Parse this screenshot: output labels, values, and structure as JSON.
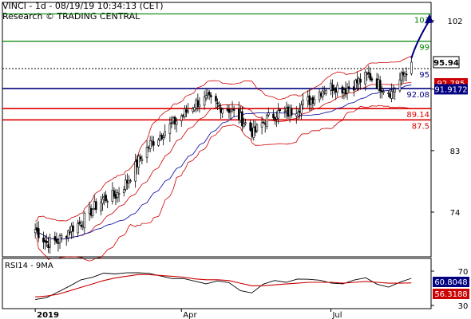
{
  "header": {
    "line1": "VINCI - 1d - 08/19/19 10:34:13 (CET)",
    "line2": "Research © TRADING CENTRAL"
  },
  "colors": {
    "resistance": "#008000",
    "pivot": "#000080",
    "support": "#dd0000",
    "price_marker": "#000000",
    "arrow": "#000080",
    "candles": "#000000",
    "ma_blue": "#1a1aa8",
    "bollinger": "#cc0000",
    "rsi": "#000000",
    "rsi_ma": "#cc0000"
  },
  "chart_data": [
    {
      "type": "candlestick",
      "title": "VINCI - 1d",
      "x_ticks": [
        "2019",
        "Apr",
        "Jul"
      ],
      "y_ticks": [
        74,
        83,
        92,
        102
      ],
      "ylim": [
        64,
        105
      ],
      "levels": [
        {
          "name": "resistance",
          "value": 103,
          "label": "103"
        },
        {
          "name": "resistance",
          "value": 99,
          "label": "99"
        },
        {
          "name": "resistance",
          "value": 95,
          "label": "95"
        },
        {
          "name": "pivot",
          "value": 92.08,
          "label": "92.08"
        },
        {
          "name": "support",
          "value": 89.14,
          "label": "89.14"
        },
        {
          "name": "support",
          "value": 87.5,
          "label": "87.5"
        }
      ],
      "last_price": {
        "value": 95.94,
        "label": "95.94"
      },
      "indicator_tags": [
        {
          "value": 92.785,
          "label": "92.785"
        },
        {
          "value": 91.9172,
          "label": "91.9172"
        }
      ],
      "close_path": [
        {
          "x": "2019-01-02",
          "y": 71.5
        },
        {
          "x": "2019-01-09",
          "y": 69.5
        },
        {
          "x": "2019-01-16",
          "y": 69.8
        },
        {
          "x": "2019-01-23",
          "y": 71.5
        },
        {
          "x": "2019-01-30",
          "y": 72.5
        },
        {
          "x": "2019-02-06",
          "y": 74.5
        },
        {
          "x": "2019-02-13",
          "y": 76.0
        },
        {
          "x": "2019-02-20",
          "y": 76.5
        },
        {
          "x": "2019-02-27",
          "y": 78.5
        },
        {
          "x": "2019-03-06",
          "y": 81.5
        },
        {
          "x": "2019-03-13",
          "y": 84.0
        },
        {
          "x": "2019-03-20",
          "y": 85.5
        },
        {
          "x": "2019-03-27",
          "y": 87.0
        },
        {
          "x": "2019-04-03",
          "y": 88.5
        },
        {
          "x": "2019-04-10",
          "y": 90.0
        },
        {
          "x": "2019-04-17",
          "y": 90.5
        },
        {
          "x": "2019-04-24",
          "y": 89.5
        },
        {
          "x": "2019-05-01",
          "y": 89.0
        },
        {
          "x": "2019-05-08",
          "y": 87.5
        },
        {
          "x": "2019-05-15",
          "y": 85.5
        },
        {
          "x": "2019-05-22",
          "y": 87.5
        },
        {
          "x": "2019-05-29",
          "y": 88.5
        },
        {
          "x": "2019-06-05",
          "y": 88.5
        },
        {
          "x": "2019-06-12",
          "y": 89.5
        },
        {
          "x": "2019-06-19",
          "y": 90.5
        },
        {
          "x": "2019-06-26",
          "y": 92.0
        },
        {
          "x": "2019-07-03",
          "y": 92.5
        },
        {
          "x": "2019-07-10",
          "y": 92.0
        },
        {
          "x": "2019-07-17",
          "y": 93.0
        },
        {
          "x": "2019-07-24",
          "y": 94.0
        },
        {
          "x": "2019-07-31",
          "y": 92.5
        },
        {
          "x": "2019-08-07",
          "y": 91.5
        },
        {
          "x": "2019-08-14",
          "y": 94.0
        },
        {
          "x": "2019-08-19",
          "y": 95.94
        }
      ],
      "projection": [
        {
          "x": "2019-08-19",
          "y": 96.5
        },
        {
          "x": "2019-08-30",
          "y": 103
        }
      ]
    },
    {
      "type": "line",
      "title": "RSI14 - 9MA",
      "y_ticks": [
        30,
        70
      ],
      "ylim": [
        30,
        75
      ],
      "tags": [
        {
          "value": 60.8048,
          "label": "60.8048"
        },
        {
          "value": 56.3188,
          "label": "56.3188"
        }
      ],
      "series": [
        {
          "name": "RSI14",
          "values": [
            36,
            40,
            44,
            52,
            58,
            62,
            66,
            68,
            67,
            70,
            68,
            64,
            62,
            60,
            58,
            56,
            60,
            58,
            48,
            44,
            54,
            58,
            56,
            60,
            62,
            58,
            56,
            54,
            60,
            62,
            56,
            50,
            58,
            60.8
          ]
        },
        {
          "name": "9MA",
          "values": [
            40,
            41,
            43,
            47,
            51,
            55,
            59,
            62,
            64,
            66,
            66,
            65,
            64,
            63,
            61,
            60,
            60,
            59,
            56,
            53,
            53,
            54,
            55,
            56,
            57,
            57,
            57,
            56,
            57,
            58,
            57,
            56,
            56,
            56.3
          ]
        }
      ]
    }
  ]
}
